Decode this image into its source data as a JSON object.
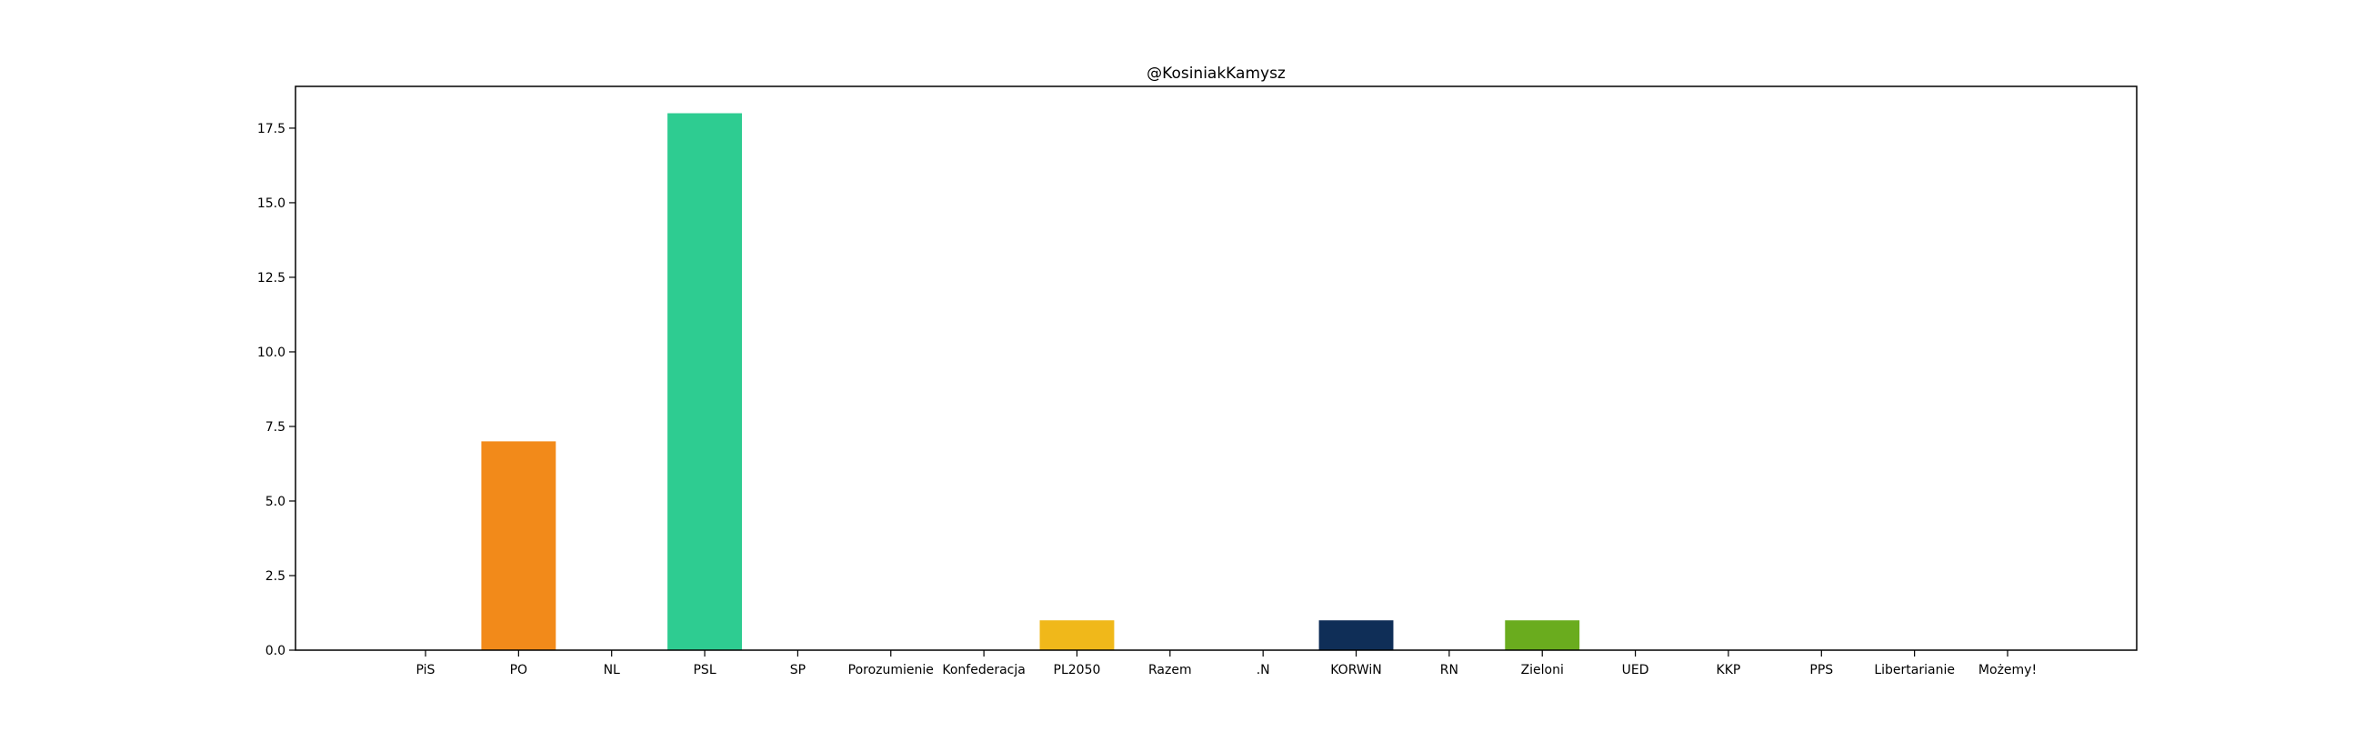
{
  "chart_data": {
    "type": "bar",
    "title": "@KosiniakKamysz",
    "xlabel": "",
    "ylabel": "",
    "ylim": [
      0,
      18.9
    ],
    "yticks": [
      0.0,
      2.5,
      5.0,
      7.5,
      10.0,
      12.5,
      15.0,
      17.5
    ],
    "ytick_labels": [
      "0.0",
      "2.5",
      "5.0",
      "7.5",
      "10.0",
      "12.5",
      "15.0",
      "17.5"
    ],
    "grid": false,
    "categories": [
      "PiS",
      "PO",
      "NL",
      "PSL",
      "SP",
      "Porozumienie",
      "Konfederacja",
      "PL2050",
      "Razem",
      ".N",
      "KORWiN",
      "RN",
      "Zieloni",
      "UED",
      "KKP",
      "PPS",
      "Libertarianie",
      "Możemy!"
    ],
    "values": [
      0,
      7,
      0,
      18,
      0,
      0,
      0,
      1,
      0,
      0,
      1,
      0,
      1,
      0,
      0,
      0,
      0,
      0
    ],
    "colors": [
      "#1f3a8a",
      "#f28a1a",
      "#d91a3d",
      "#2ecc91",
      "#0a3d91",
      "#2e5aa8",
      "#1a2a5a",
      "#f0b81a",
      "#8a1538",
      "#1f5ba8",
      "#0f2e57",
      "#3a3a3a",
      "#6aac1e",
      "#2a5aa0",
      "#4a4a4a",
      "#c0392b",
      "#e0c020",
      "#5a3a8a"
    ]
  }
}
